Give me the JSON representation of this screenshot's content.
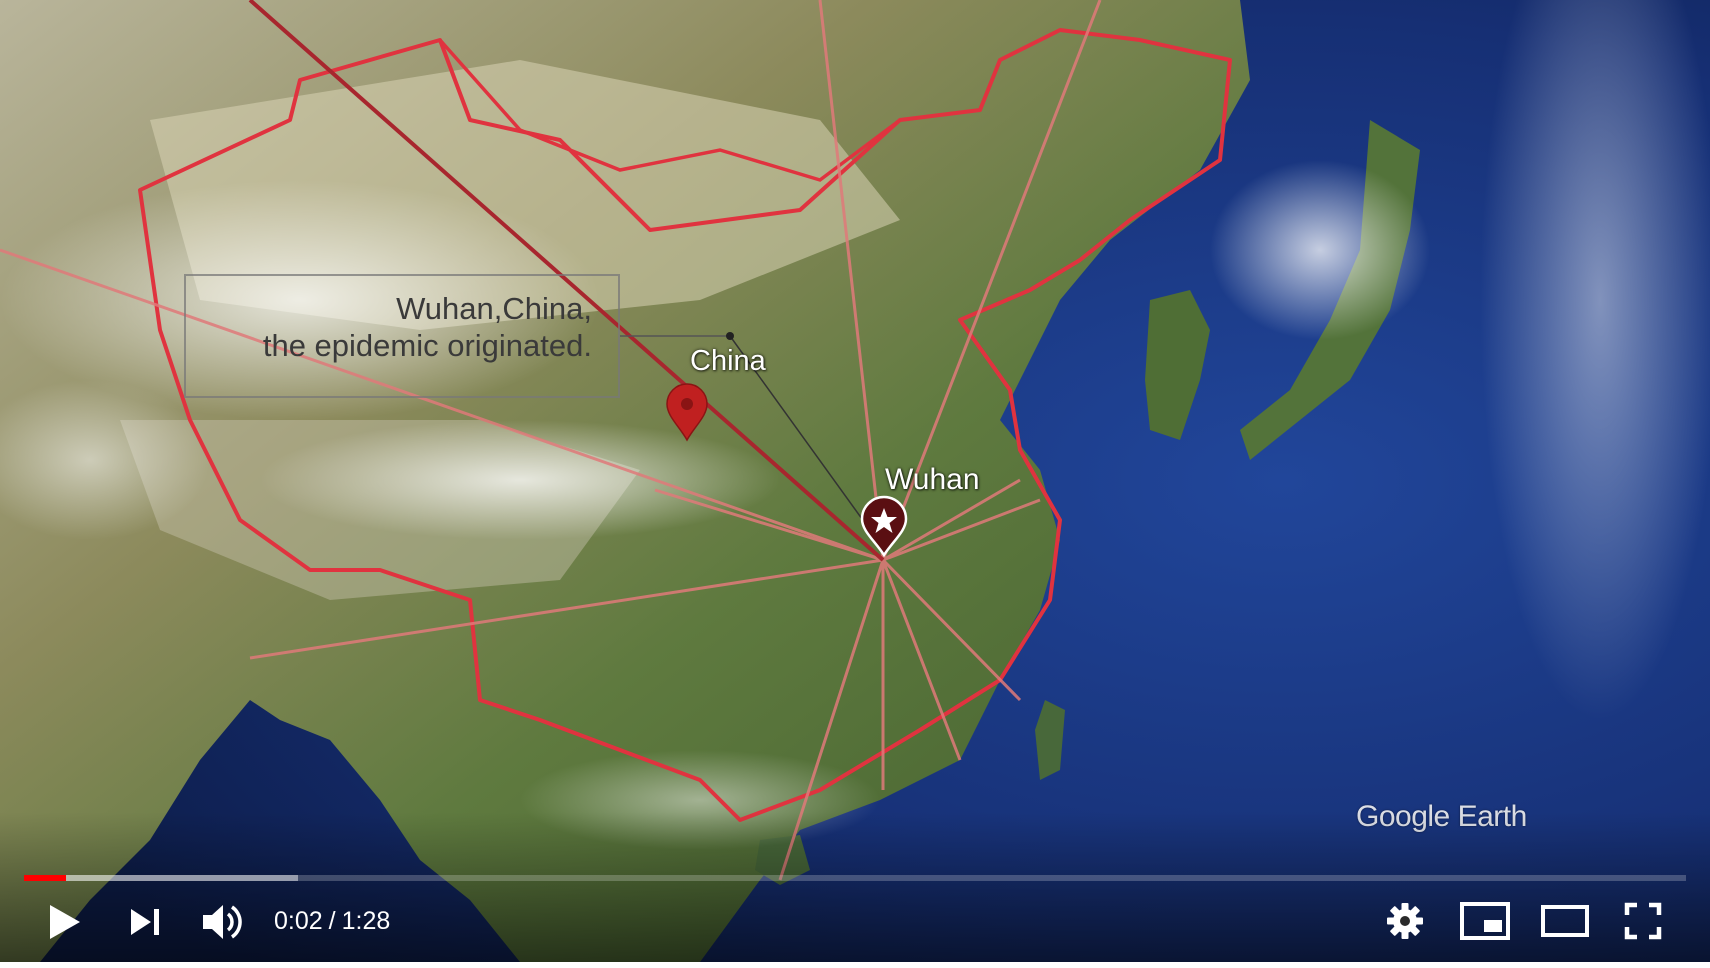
{
  "video": {
    "annotation_lines": [
      "Wuhan,China,",
      "the epidemic originated."
    ],
    "map_labels": {
      "china": "China",
      "wuhan": "Wuhan"
    },
    "watermark": "Google Earth"
  },
  "controls": {
    "current_time": "0:02",
    "separator": "/",
    "duration": "1:28",
    "progress_played_fraction": 0.025,
    "progress_buffered_fraction": 0.165,
    "accent_color": "#ff0000",
    "icons": {
      "play": "play-icon",
      "next": "next-icon",
      "volume": "volume-icon",
      "settings": "gear-icon",
      "miniplayer": "miniplayer-icon",
      "theater": "theater-mode-icon",
      "fullscreen": "fullscreen-icon"
    }
  }
}
